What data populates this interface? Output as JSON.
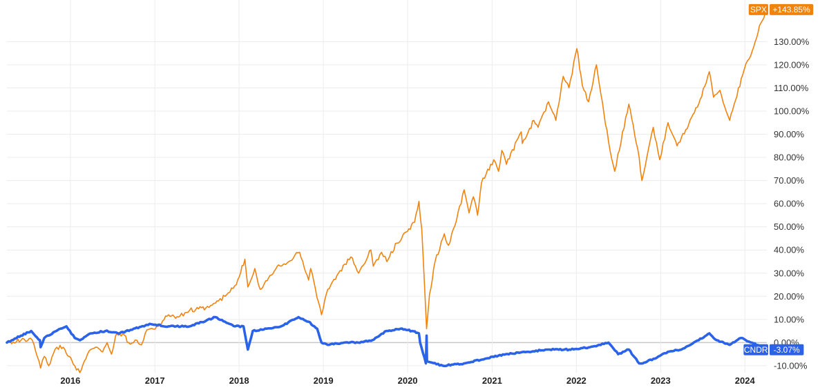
{
  "chart_data": {
    "type": "line",
    "title": "",
    "xlabel": "",
    "ylabel": "",
    "ylim": [
      -13,
      145
    ],
    "x_range": [
      "2015-04-01",
      "2024-04-05"
    ],
    "grid": true,
    "y_ticks": [
      {
        "value": 130,
        "label": "130.00%"
      },
      {
        "value": 120,
        "label": "120.00%"
      },
      {
        "value": 110,
        "label": "110.00%"
      },
      {
        "value": 100,
        "label": "100.00%"
      },
      {
        "value": 90,
        "label": "90.00%"
      },
      {
        "value": 80,
        "label": "80.00%"
      },
      {
        "value": 70,
        "label": "70.00%"
      },
      {
        "value": 60,
        "label": "60.00%"
      },
      {
        "value": 50,
        "label": "50.00%"
      },
      {
        "value": 40,
        "label": "40.00%"
      },
      {
        "value": 30,
        "label": "30.00%"
      },
      {
        "value": 20,
        "label": "20.00%"
      },
      {
        "value": 10,
        "label": "10.00%"
      },
      {
        "value": 0,
        "label": "0.00%"
      },
      {
        "value": -10,
        "label": "-10.00%"
      }
    ],
    "x_ticks": [
      {
        "value": "2016-01-01",
        "label": "2016"
      },
      {
        "value": "2017-01-01",
        "label": "2017"
      },
      {
        "value": "2018-01-01",
        "label": "2018"
      },
      {
        "value": "2019-01-01",
        "label": "2019"
      },
      {
        "value": "2020-01-01",
        "label": "2020"
      },
      {
        "value": "2021-01-01",
        "label": "2021"
      },
      {
        "value": "2022-01-01",
        "label": "2022"
      },
      {
        "value": "2023-01-01",
        "label": "2023"
      },
      {
        "value": "2024-01-01",
        "label": "2024"
      }
    ],
    "series": [
      {
        "name": "SPX",
        "color": "#f0830e",
        "end_label": "+143.85%",
        "points": [
          [
            "2015-04-01",
            0
          ],
          [
            "2015-06-01",
            1
          ],
          [
            "2015-07-20",
            1
          ],
          [
            "2015-08-25",
            -11
          ],
          [
            "2015-09-10",
            -6
          ],
          [
            "2015-09-29",
            -10
          ],
          [
            "2015-11-03",
            -2
          ],
          [
            "2015-12-01",
            -2
          ],
          [
            "2016-01-20",
            -10
          ],
          [
            "2016-02-11",
            -13
          ],
          [
            "2016-03-15",
            -5
          ],
          [
            "2016-04-20",
            -2
          ],
          [
            "2016-05-20",
            -4
          ],
          [
            "2016-06-08",
            0
          ],
          [
            "2016-06-27",
            -5
          ],
          [
            "2016-07-15",
            3
          ],
          [
            "2016-08-15",
            4
          ],
          [
            "2016-09-09",
            0
          ],
          [
            "2016-10-15",
            1
          ],
          [
            "2016-11-04",
            -1
          ],
          [
            "2016-11-20",
            4
          ],
          [
            "2016-12-13",
            6
          ],
          [
            "2017-01-15",
            7
          ],
          [
            "2017-03-01",
            12
          ],
          [
            "2017-04-13",
            11
          ],
          [
            "2017-06-01",
            14
          ],
          [
            "2017-08-10",
            15
          ],
          [
            "2017-09-20",
            17
          ],
          [
            "2017-11-01",
            20
          ],
          [
            "2017-12-20",
            25
          ],
          [
            "2018-01-26",
            36
          ],
          [
            "2018-02-08",
            24
          ],
          [
            "2018-03-10",
            32
          ],
          [
            "2018-04-02",
            23
          ],
          [
            "2018-05-15",
            29
          ],
          [
            "2018-06-15",
            33
          ],
          [
            "2018-07-15",
            34
          ],
          [
            "2018-09-20",
            39
          ],
          [
            "2018-10-29",
            27
          ],
          [
            "2018-11-07",
            32
          ],
          [
            "2018-12-24",
            12
          ],
          [
            "2019-01-20",
            23
          ],
          [
            "2019-03-01",
            29
          ],
          [
            "2019-04-30",
            37
          ],
          [
            "2019-06-03",
            30
          ],
          [
            "2019-07-26",
            40
          ],
          [
            "2019-08-05",
            33
          ],
          [
            "2019-09-10",
            39
          ],
          [
            "2019-10-03",
            35
          ],
          [
            "2019-11-15",
            43
          ],
          [
            "2019-12-31",
            48
          ],
          [
            "2020-01-31",
            52
          ],
          [
            "2020-02-19",
            61
          ],
          [
            "2020-03-02",
            49
          ],
          [
            "2020-03-23",
            6
          ],
          [
            "2020-04-05",
            21
          ],
          [
            "2020-04-29",
            35
          ],
          [
            "2020-06-08",
            47
          ],
          [
            "2020-06-26",
            42
          ],
          [
            "2020-07-31",
            53
          ],
          [
            "2020-09-02",
            66
          ],
          [
            "2020-09-23",
            56
          ],
          [
            "2020-10-12",
            63
          ],
          [
            "2020-10-30",
            55
          ],
          [
            "2020-11-16",
            69
          ],
          [
            "2021-01-08",
            79
          ],
          [
            "2021-01-29",
            74
          ],
          [
            "2021-02-12",
            83
          ],
          [
            "2021-03-04",
            77
          ],
          [
            "2021-05-07",
            91
          ],
          [
            "2021-05-12",
            86
          ],
          [
            "2021-07-01",
            96
          ],
          [
            "2021-07-19",
            93
          ],
          [
            "2021-09-02",
            104
          ],
          [
            "2021-10-04",
            96
          ],
          [
            "2021-11-05",
            115
          ],
          [
            "2021-11-30",
            110
          ],
          [
            "2022-01-03",
            127
          ],
          [
            "2022-01-27",
            111
          ],
          [
            "2022-02-23",
            104
          ],
          [
            "2022-03-29",
            120
          ],
          [
            "2022-05-20",
            87
          ],
          [
            "2022-06-16",
            74
          ],
          [
            "2022-08-16",
            103
          ],
          [
            "2022-09-30",
            80
          ],
          [
            "2022-10-12",
            70
          ],
          [
            "2022-11-30",
            93
          ],
          [
            "2022-12-28",
            79
          ],
          [
            "2023-02-02",
            95
          ],
          [
            "2023-03-13",
            85
          ],
          [
            "2023-04-20",
            92
          ],
          [
            "2023-06-15",
            103
          ],
          [
            "2023-07-31",
            117
          ],
          [
            "2023-08-18",
            106
          ],
          [
            "2023-09-15",
            109
          ],
          [
            "2023-10-27",
            96
          ],
          [
            "2023-12-29",
            118
          ],
          [
            "2024-02-09",
            128
          ],
          [
            "2024-03-10",
            138
          ],
          [
            "2024-04-05",
            143.85
          ]
        ]
      },
      {
        "name": "CNDR",
        "color": "#2b63e8",
        "end_label": "-3.07%",
        "points": [
          [
            "2015-04-01",
            0
          ],
          [
            "2015-06-01",
            3
          ],
          [
            "2015-07-15",
            5
          ],
          [
            "2015-08-22",
            1
          ],
          [
            "2015-08-25",
            -2
          ],
          [
            "2015-09-10",
            2
          ],
          [
            "2015-11-01",
            5
          ],
          [
            "2015-12-15",
            7
          ],
          [
            "2016-01-20",
            2
          ],
          [
            "2016-02-11",
            1
          ],
          [
            "2016-04-01",
            4
          ],
          [
            "2016-06-01",
            5
          ],
          [
            "2016-08-01",
            4
          ],
          [
            "2016-10-01",
            6
          ],
          [
            "2016-11-15",
            7
          ],
          [
            "2016-12-15",
            8
          ],
          [
            "2017-03-01",
            7
          ],
          [
            "2017-06-01",
            7
          ],
          [
            "2017-09-20",
            11
          ],
          [
            "2017-11-01",
            9
          ],
          [
            "2017-12-15",
            7
          ],
          [
            "2018-01-20",
            7
          ],
          [
            "2018-02-08",
            -3
          ],
          [
            "2018-03-01",
            5
          ],
          [
            "2018-05-01",
            6
          ],
          [
            "2018-07-01",
            7
          ],
          [
            "2018-09-15",
            11
          ],
          [
            "2018-10-29",
            9
          ],
          [
            "2018-12-05",
            6
          ],
          [
            "2018-12-24",
            0
          ],
          [
            "2019-01-20",
            -1
          ],
          [
            "2019-04-01",
            0
          ],
          [
            "2019-06-01",
            0
          ],
          [
            "2019-08-01",
            1
          ],
          [
            "2019-10-01",
            5
          ],
          [
            "2019-12-01",
            6
          ],
          [
            "2020-01-20",
            5
          ],
          [
            "2020-02-19",
            4
          ],
          [
            "2020-02-24",
            0
          ],
          [
            "2020-03-20",
            -9
          ],
          [
            "2020-03-23",
            3
          ],
          [
            "2020-03-25",
            -8
          ],
          [
            "2020-06-01",
            -10
          ],
          [
            "2020-09-01",
            -9
          ],
          [
            "2020-12-01",
            -7
          ],
          [
            "2021-03-01",
            -5
          ],
          [
            "2021-06-01",
            -4
          ],
          [
            "2021-09-01",
            -3
          ],
          [
            "2021-12-01",
            -3
          ],
          [
            "2022-03-01",
            -2
          ],
          [
            "2022-05-20",
            0
          ],
          [
            "2022-07-01",
            -5
          ],
          [
            "2022-08-16",
            -3
          ],
          [
            "2022-09-30",
            -9
          ],
          [
            "2022-10-15",
            -9
          ],
          [
            "2022-12-01",
            -7
          ],
          [
            "2023-02-01",
            -4
          ],
          [
            "2023-04-01",
            -3
          ],
          [
            "2023-06-15",
            1
          ],
          [
            "2023-07-31",
            4
          ],
          [
            "2023-09-01",
            1
          ],
          [
            "2023-10-27",
            -1
          ],
          [
            "2023-12-15",
            2
          ],
          [
            "2024-02-01",
            0
          ],
          [
            "2024-04-05",
            -3.07
          ]
        ]
      }
    ]
  }
}
